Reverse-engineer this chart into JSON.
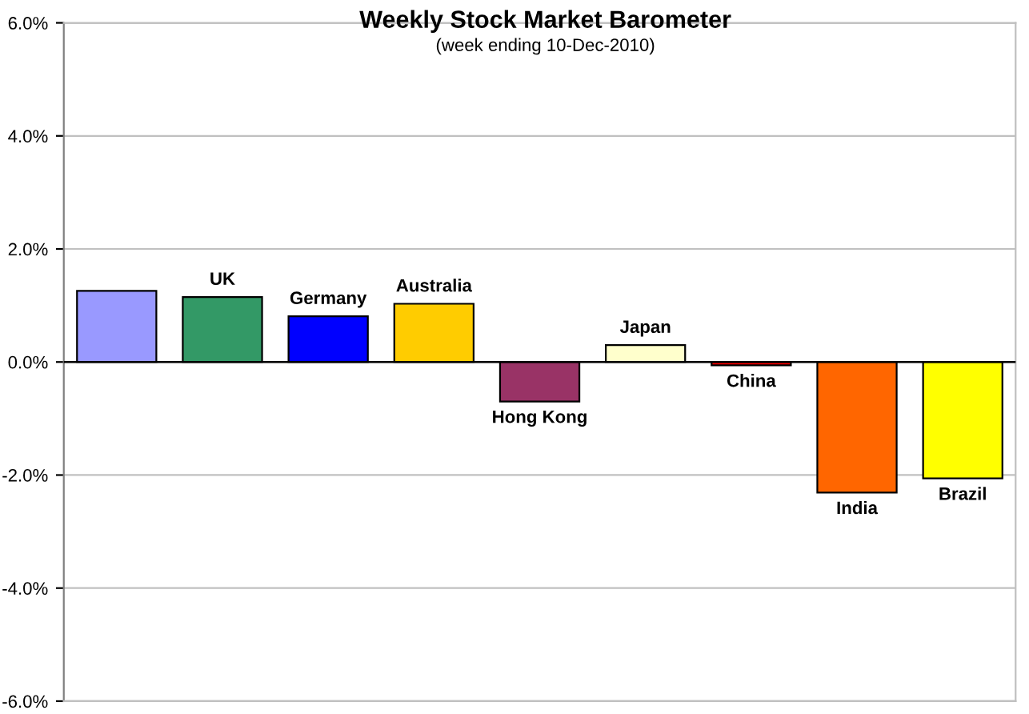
{
  "chart_data": {
    "type": "bar",
    "title": "Weekly Stock Market Barometer",
    "subtitle": "(week ending 10-Dec-2010)",
    "categories": [
      null,
      "UK",
      "Germany",
      "Australia",
      "Hong Kong",
      "Japan",
      "China",
      "India",
      "Brazil"
    ],
    "values": [
      1.26,
      1.15,
      0.81,
      1.03,
      -0.7,
      0.3,
      -0.06,
      -2.31,
      -2.06
    ],
    "colors": [
      "#9999ff",
      "#339966",
      "#0000ff",
      "#ffcc00",
      "#993366",
      "#ffffcc",
      "#ff0000",
      "#ff6600",
      "#ffff00"
    ],
    "ylim": [
      -6,
      6
    ],
    "yticks": [
      {
        "value": -6,
        "label": "-6.0%"
      },
      {
        "value": -4,
        "label": "-4.0%"
      },
      {
        "value": -2,
        "label": "-2.0%"
      },
      {
        "value": 0,
        "label": "0.0%"
      },
      {
        "value": 2,
        "label": "2.0%"
      },
      {
        "value": 4,
        "label": "4.0%"
      },
      {
        "value": 6,
        "label": "6.0%"
      }
    ],
    "grid": "y",
    "tick_labels": "y"
  }
}
